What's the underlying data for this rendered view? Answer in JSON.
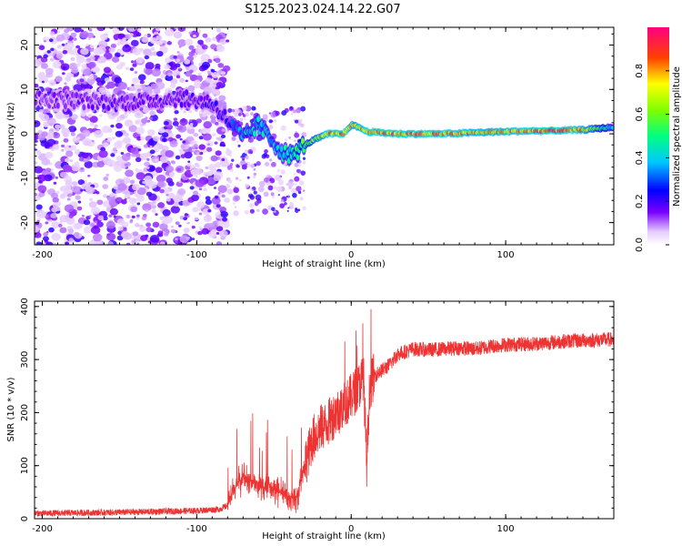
{
  "title": "S125.2023.024.14.22.G07",
  "chart_data": [
    {
      "type": "heatmap",
      "xlabel": "Height of straight line (km)",
      "ylabel": "Frequency (Hz)",
      "xlim": [
        -205,
        170
      ],
      "ylim": [
        -25,
        24
      ],
      "x_ticks": [
        -200,
        -100,
        0,
        100
      ],
      "y_ticks": [
        -20,
        -10,
        0,
        10,
        20
      ],
      "colorbar": {
        "label": "Normalized spectral amplitude",
        "range": [
          0,
          1
        ],
        "ticks": [
          "0.0",
          "0.2",
          "0.4",
          "0.6",
          "0.8"
        ]
      },
      "ridge": [
        {
          "x": -205,
          "y": 8,
          "amp": 0.15
        },
        {
          "x": -150,
          "y": 7,
          "amp": 0.17
        },
        {
          "x": -110,
          "y": 8,
          "amp": 0.18
        },
        {
          "x": -90,
          "y": 7,
          "amp": 0.2
        },
        {
          "x": -80,
          "y": 3,
          "amp": 0.25
        },
        {
          "x": -70,
          "y": -1,
          "amp": 0.4
        },
        {
          "x": -60,
          "y": 2,
          "amp": 0.45
        },
        {
          "x": -55,
          "y": 0,
          "amp": 0.4
        },
        {
          "x": -50,
          "y": -2,
          "amp": 0.4
        },
        {
          "x": -45,
          "y": -4,
          "amp": 0.45
        },
        {
          "x": -38,
          "y": -5,
          "amp": 0.5
        },
        {
          "x": -32,
          "y": -3,
          "amp": 0.55
        },
        {
          "x": -25,
          "y": -1.5,
          "amp": 0.65
        },
        {
          "x": -15,
          "y": 0,
          "amp": 0.85
        },
        {
          "x": -5,
          "y": 0,
          "amp": 0.9
        },
        {
          "x": 0,
          "y": 2,
          "amp": 0.75
        },
        {
          "x": 5,
          "y": 1.5,
          "amp": 0.8
        },
        {
          "x": 10,
          "y": 0.5,
          "amp": 0.9
        },
        {
          "x": 30,
          "y": 0,
          "amp": 0.9
        },
        {
          "x": 60,
          "y": 0,
          "amp": 0.85
        },
        {
          "x": 90,
          "y": 0.4,
          "amp": 0.8
        },
        {
          "x": 110,
          "y": 0.6,
          "amp": 0.85
        },
        {
          "x": 130,
          "y": 0.7,
          "amp": 0.95
        },
        {
          "x": 150,
          "y": 0.9,
          "amp": 0.8
        },
        {
          "x": 170,
          "y": 1.5,
          "amp": 0.4
        }
      ]
    },
    {
      "type": "line",
      "xlabel": "Height of straight line (km)",
      "ylabel": "SNR (10 * v/v)",
      "xlim": [
        -205,
        170
      ],
      "ylim": [
        0,
        410
      ],
      "x_ticks": [
        -200,
        -100,
        0,
        100
      ],
      "y_ticks": [
        0,
        100,
        200,
        300,
        400
      ],
      "color": "#ee3333",
      "series": [
        {
          "x": [
            -205,
            -150,
            -100,
            -85,
            -80,
            -75,
            -70,
            -60,
            -50,
            -40,
            -35,
            -30,
            -25,
            -20,
            -15,
            -10,
            -5,
            0,
            5,
            8,
            10,
            12,
            15,
            20,
            25,
            30,
            35,
            40,
            50,
            60,
            70,
            80,
            90,
            100,
            120,
            140,
            170
          ],
          "y": [
            10,
            12,
            15,
            18,
            25,
            60,
            80,
            60,
            55,
            40,
            40,
            100,
            150,
            170,
            180,
            200,
            210,
            230,
            250,
            270,
            100,
            250,
            270,
            280,
            290,
            310,
            315,
            320,
            318,
            320,
            322,
            320,
            325,
            328,
            330,
            335,
            338
          ]
        }
      ]
    }
  ]
}
